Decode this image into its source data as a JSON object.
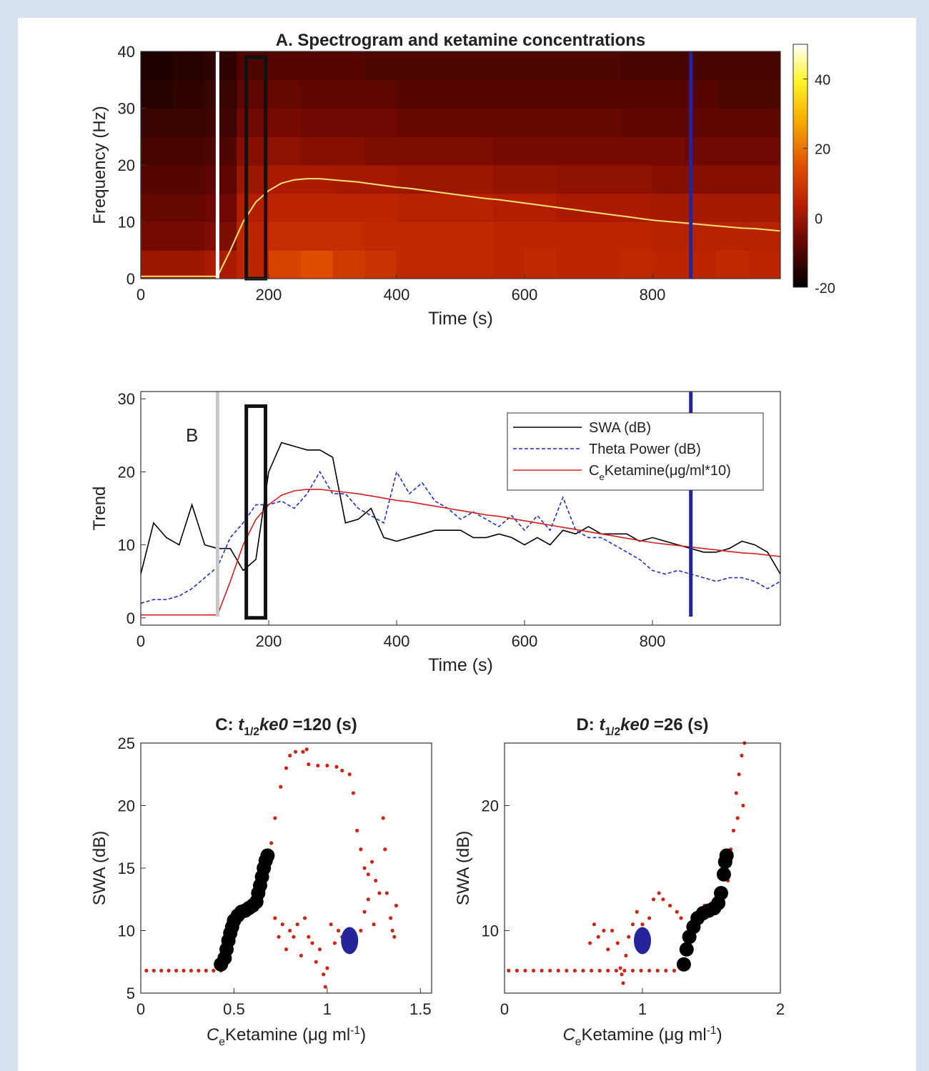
{
  "chart_data": [
    {
      "type": "heatmap",
      "title": "A. Spectrogram and κetamine concentrations",
      "x_label": "Time (s)",
      "y_label": "Frequency (Hz)",
      "xlim": [
        0,
        1000
      ],
      "ylim": [
        0,
        40
      ],
      "xticks": [
        0,
        200,
        400,
        600,
        800
      ],
      "yticks": [
        0,
        10,
        20,
        30,
        40
      ],
      "x_bins": [
        0,
        50,
        100,
        150,
        200,
        250,
        300,
        350,
        400,
        450,
        500,
        550,
        600,
        650,
        700,
        750,
        800,
        850,
        900,
        950,
        1000
      ],
      "y_bins": [
        0,
        5,
        10,
        15,
        20,
        25,
        30,
        35,
        40
      ],
      "z": [
        [
          0,
          0,
          2,
          5,
          12,
          14,
          10,
          8,
          6,
          6,
          6,
          5,
          6,
          5,
          5,
          6,
          5,
          5,
          6,
          5
        ],
        [
          -5,
          -5,
          -4,
          5,
          7,
          7,
          7,
          6,
          6,
          6,
          6,
          5,
          5,
          5,
          5,
          5,
          4,
          4,
          4,
          4
        ],
        [
          -7,
          -7,
          -6,
          3,
          5,
          5,
          5,
          5,
          4,
          4,
          4,
          3,
          3,
          2,
          2,
          2,
          1,
          1,
          1,
          1
        ],
        [
          -9,
          -9,
          -8,
          0,
          2,
          2,
          1,
          1,
          0,
          0,
          0,
          -1,
          -1,
          -2,
          -2,
          -2,
          -3,
          -3,
          -3,
          -3
        ],
        [
          -11,
          -11,
          -10,
          -3,
          -2,
          -3,
          -3,
          -4,
          -4,
          -4,
          -4,
          -5,
          -5,
          -5,
          -5,
          -5,
          -5,
          -6,
          -6,
          -6
        ],
        [
          -13,
          -13,
          -12,
          -6,
          -5,
          -6,
          -6,
          -6,
          -7,
          -7,
          -7,
          -7,
          -7,
          -7,
          -7,
          -8,
          -8,
          -8,
          -8,
          -8
        ],
        [
          -15,
          -14,
          -13,
          -8,
          -7,
          -8,
          -8,
          -8,
          -9,
          -9,
          -9,
          -9,
          -9,
          -9,
          -9,
          -9,
          -9,
          -9,
          -10,
          -10
        ],
        [
          -16,
          -15,
          -14,
          -10,
          -9,
          -9,
          -9,
          -10,
          -10,
          -10,
          -10,
          -10,
          -10,
          -10,
          -10,
          -11,
          -11,
          -11,
          -11,
          -11
        ]
      ],
      "clim": [
        -20,
        50
      ],
      "cticks": [
        -20,
        0,
        20,
        40
      ],
      "colormap": "hot",
      "x": [
        0,
        20,
        40,
        60,
        80,
        100,
        120,
        140,
        160,
        180,
        200,
        220,
        240,
        260,
        280,
        300,
        320,
        340,
        360,
        380,
        400,
        420,
        440,
        460,
        480,
        500,
        520,
        540,
        560,
        580,
        600,
        620,
        640,
        660,
        680,
        700,
        720,
        740,
        760,
        780,
        800,
        820,
        840,
        860,
        880,
        900,
        920,
        940,
        960,
        980,
        1000
      ],
      "series": [
        {
          "color": "#f3e26a",
          "values": [
            0.4,
            0.4,
            0.4,
            0.4,
            0.4,
            0.4,
            0.4,
            5,
            10,
            13.5,
            15.5,
            16.8,
            17.4,
            17.6,
            17.6,
            17.4,
            17.2,
            17,
            16.7,
            16.4,
            16.1,
            15.9,
            15.6,
            15.3,
            15.0,
            14.7,
            14.4,
            14.1,
            13.9,
            13.6,
            13.3,
            13.0,
            12.7,
            12.4,
            12.1,
            11.8,
            11.5,
            11.2,
            10.9,
            10.6,
            10.3,
            10.1,
            9.9,
            9.7,
            9.5,
            9.3,
            9.1,
            8.9,
            8.8,
            8.6,
            8.4
          ]
        }
      ],
      "vlines": [
        {
          "x": 120,
          "color": "#ffffff"
        },
        {
          "x": 860,
          "color": "#25259a"
        }
      ],
      "box": {
        "x": [
          165,
          195
        ],
        "y": [
          0,
          39
        ]
      }
    },
    {
      "type": "line",
      "annotation": "B",
      "x_label": "Time (s)",
      "y_label": "Trend",
      "xlim": [
        0,
        1000
      ],
      "ylim": [
        -1,
        31
      ],
      "xticks": [
        0,
        200,
        400,
        600,
        800
      ],
      "yticks": [
        0,
        10,
        20,
        30
      ],
      "legend": "upper right",
      "x": [
        0,
        20,
        40,
        60,
        80,
        100,
        120,
        140,
        160,
        180,
        200,
        220,
        240,
        260,
        280,
        300,
        320,
        340,
        360,
        380,
        400,
        420,
        440,
        460,
        480,
        500,
        520,
        540,
        560,
        580,
        600,
        620,
        640,
        660,
        680,
        700,
        720,
        740,
        760,
        780,
        800,
        820,
        840,
        860,
        880,
        900,
        920,
        940,
        960,
        980,
        1000
      ],
      "series": [
        {
          "name": [
            "SWA (dB)"
          ],
          "color": "#000000",
          "linestyle": "-",
          "values": [
            6,
            13,
            11,
            10,
            15.5,
            10,
            9.5,
            9.5,
            6.5,
            8,
            20,
            24,
            23.5,
            23,
            23,
            22,
            13,
            13.5,
            15,
            11,
            10.5,
            11,
            11.5,
            12,
            12,
            12,
            11,
            11,
            11.5,
            11,
            10,
            11,
            10,
            12,
            11.5,
            12.5,
            11.5,
            11.5,
            11.5,
            10.5,
            11,
            10.5,
            10,
            9.5,
            9,
            9,
            9.5,
            10.5,
            10,
            9,
            6
          ]
        },
        {
          "name": [
            "Theta Power (dB)"
          ],
          "color": "#2030c0",
          "linestyle": "--",
          "values": [
            2,
            2.5,
            2.5,
            3,
            4,
            5.5,
            7,
            11,
            13,
            15.5,
            15.5,
            16,
            15,
            17,
            20,
            17,
            17,
            15,
            14,
            13,
            20,
            17,
            18.5,
            16,
            15,
            13.5,
            14.5,
            13.5,
            12.5,
            14,
            12,
            14,
            12,
            16.5,
            12,
            11,
            11,
            10,
            9,
            8,
            6.5,
            6,
            6.5,
            6,
            5.5,
            5,
            5.5,
            5.5,
            5,
            4,
            5
          ]
        },
        {
          "name": [
            "C",
            "e",
            "Ketamine(μg/ml*10)"
          ],
          "color": "#d42020",
          "linestyle": "-",
          "values": [
            0.4,
            0.4,
            0.4,
            0.4,
            0.4,
            0.4,
            0.4,
            5,
            10,
            13.5,
            15.5,
            16.8,
            17.4,
            17.6,
            17.6,
            17.4,
            17.2,
            17,
            16.7,
            16.4,
            16.1,
            15.9,
            15.6,
            15.3,
            15.0,
            14.7,
            14.4,
            14.1,
            13.9,
            13.6,
            13.3,
            13.0,
            12.7,
            12.4,
            12.1,
            11.8,
            11.5,
            11.2,
            10.9,
            10.6,
            10.3,
            10.1,
            9.9,
            9.7,
            9.5,
            9.3,
            9.1,
            8.9,
            8.8,
            8.6,
            8.4
          ]
        }
      ],
      "vlines": [
        {
          "x": 120,
          "color": "#c8c8c8"
        },
        {
          "x": 860,
          "color": "#25259a"
        }
      ],
      "box": {
        "x": [
          165,
          195
        ],
        "y": [
          0,
          29
        ]
      }
    },
    {
      "type": "scatter",
      "title": [
        "C: ",
        "t",
        "1/2",
        "ke0",
        " =120 (s)"
      ],
      "x_label": [
        "C",
        "e",
        "Ketamine (μg ml",
        "-1",
        ")"
      ],
      "y_label": "SWA (dB)",
      "xlim": [
        0,
        1.56
      ],
      "ylim": [
        5,
        25
      ],
      "xticks": [
        0,
        0.5,
        1,
        1.5
      ],
      "yticks": [
        5,
        10,
        15,
        20,
        25
      ],
      "series": [
        {
          "color": "#c8281a",
          "x": [
            0.03,
            0.07,
            0.11,
            0.15,
            0.19,
            0.23,
            0.27,
            0.31,
            0.35,
            0.39,
            0.43,
            0.7,
            0.72,
            0.75,
            0.78,
            0.8,
            0.83,
            0.87,
            0.89,
            0.9,
            0.95,
            1.0,
            1.05,
            1.08,
            1.12,
            1.14,
            1.16,
            1.18,
            1.2,
            1.22,
            1.24,
            1.26,
            1.28,
            1.3,
            1.31,
            1.32,
            1.34,
            1.35,
            1.37,
            1.36,
            0.72,
            0.74,
            0.76,
            0.78,
            0.8,
            0.82,
            0.84,
            0.86,
            0.88,
            0.9,
            0.92,
            0.94,
            0.96,
            0.98,
            0.99,
            1.0,
            1.02,
            1.04,
            1.06,
            1.08,
            1.1,
            1.12,
            1.15,
            1.18,
            1.2,
            1.22,
            1.25
          ],
          "y": [
            6.8,
            6.8,
            6.8,
            6.8,
            6.8,
            6.8,
            6.8,
            6.8,
            6.8,
            6.8,
            6.8,
            17,
            19,
            21.5,
            23,
            24,
            24.3,
            24.3,
            24.5,
            23.3,
            23.2,
            23.2,
            23.1,
            22.8,
            22.5,
            21,
            18,
            16.5,
            15,
            14.5,
            15.5,
            14,
            13,
            19,
            16.5,
            13,
            11,
            10,
            12,
            9.5,
            11,
            9.5,
            10.5,
            8.5,
            10,
            9.5,
            10.5,
            8,
            11,
            9.5,
            9,
            7.5,
            8.5,
            6.5,
            5.5,
            7,
            10.5,
            9,
            10,
            9.5,
            8.5,
            9.5,
            9,
            10,
            11.5,
            12.5,
            10.5
          ]
        },
        {
          "color": "#000000",
          "x": [
            0.43,
            0.45,
            0.46,
            0.47,
            0.48,
            0.49,
            0.5,
            0.52,
            0.54,
            0.56,
            0.58,
            0.6,
            0.62,
            0.63,
            0.64,
            0.65,
            0.66,
            0.67,
            0.68
          ],
          "y": [
            7.3,
            7.8,
            8.5,
            9.2,
            9.8,
            10.3,
            10.8,
            11.2,
            11.5,
            11.6,
            11.8,
            12,
            12.3,
            13,
            13.6,
            14.3,
            15,
            15.6,
            16
          ]
        },
        {
          "color": "#25259a",
          "x": [
            1.12
          ],
          "y": [
            9.2
          ]
        }
      ]
    },
    {
      "type": "scatter",
      "title": [
        "D: ",
        "t",
        "1/2",
        "ke0",
        " =26 (s)"
      ],
      "x_label": [
        "C",
        "e",
        "Ketamine (μg ml",
        "-1",
        ")"
      ],
      "y_label": "SWA (dB)",
      "xlim": [
        0,
        2
      ],
      "ylim": [
        5,
        25
      ],
      "xticks": [
        0,
        1,
        2
      ],
      "yticks": [
        10,
        20
      ],
      "series": [
        {
          "color": "#c8281a",
          "x": [
            0.03,
            0.09,
            0.15,
            0.21,
            0.27,
            0.33,
            0.39,
            0.45,
            0.51,
            0.57,
            0.63,
            0.69,
            0.75,
            0.81,
            0.87,
            0.93,
            0.99,
            1.05,
            1.11,
            1.17,
            1.23,
            0.62,
            0.65,
            0.68,
            0.72,
            0.75,
            0.78,
            0.82,
            0.84,
            0.85,
            0.86,
            0.88,
            0.9,
            0.93,
            0.96,
            1.0,
            1.05,
            1.08,
            1.12,
            1.15,
            1.2,
            1.25,
            1.28,
            1.35,
            1.4,
            1.45,
            1.5,
            1.55,
            1.58,
            1.62,
            1.64,
            1.66,
            1.68,
            1.7,
            1.72,
            1.74,
            1.73,
            1.69
          ],
          "y": [
            6.8,
            6.8,
            6.8,
            6.8,
            6.8,
            6.8,
            6.8,
            6.8,
            6.8,
            6.8,
            6.8,
            6.8,
            6.8,
            6.8,
            6.8,
            6.8,
            6.8,
            6.8,
            6.8,
            6.8,
            6.8,
            9,
            10.5,
            9.5,
            10,
            8.5,
            10,
            9,
            7,
            6.5,
            5.8,
            8,
            9.5,
            10.5,
            11.5,
            10.5,
            11,
            12.5,
            13,
            12.5,
            12,
            11.5,
            11,
            10.5,
            11.5,
            12,
            11.5,
            12,
            13,
            14,
            16.5,
            18,
            21,
            22.5,
            24,
            25,
            20,
            19
          ]
        },
        {
          "color": "#000000",
          "x": [
            1.3,
            1.32,
            1.34,
            1.37,
            1.4,
            1.44,
            1.48,
            1.52,
            1.55,
            1.57,
            1.59,
            1.6,
            1.61
          ],
          "y": [
            7.3,
            8.5,
            9.5,
            10.3,
            11,
            11.4,
            11.6,
            11.8,
            12.2,
            13,
            14.5,
            15.5,
            16
          ]
        },
        {
          "color": "#25259a",
          "x": [
            1.0
          ],
          "y": [
            9.2
          ]
        }
      ]
    }
  ]
}
